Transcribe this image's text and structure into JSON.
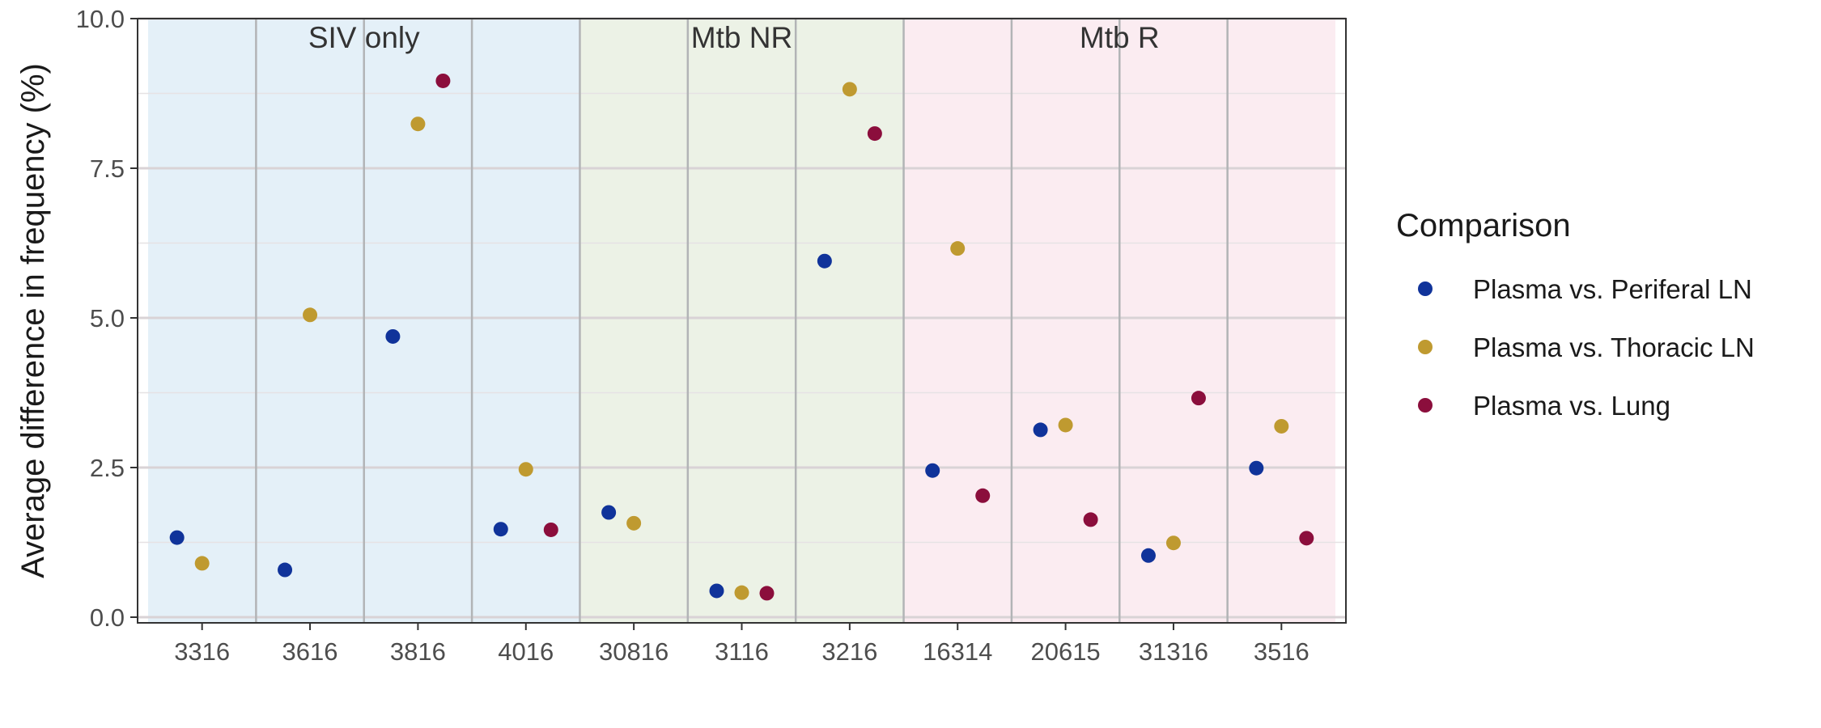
{
  "chart_data": {
    "type": "scatter",
    "ylabel": "Average difference in frequency (%)",
    "xlabel": "",
    "ylim": [
      0,
      10
    ],
    "yticks": [
      "0.0",
      "2.5",
      "5.0",
      "7.5",
      "10.0"
    ],
    "grid": true,
    "legend_title": "Comparison",
    "legend_position": "right",
    "categories": [
      "3316",
      "3616",
      "3816",
      "4016",
      "30816",
      "3116",
      "3216",
      "16314",
      "20615",
      "31316",
      "3516"
    ],
    "groups": [
      {
        "label": "SIV only",
        "categories": [
          "3316",
          "3616",
          "3816",
          "4016"
        ],
        "color": "#e4f0f8"
      },
      {
        "label": "Mtb NR",
        "categories": [
          "30816",
          "3116",
          "3216"
        ],
        "color": "#ecf2e6"
      },
      {
        "label": "Mtb R",
        "categories": [
          "16314",
          "20615",
          "31316",
          "3516"
        ],
        "color": "#fbecf1"
      }
    ],
    "series": [
      {
        "name": "Plasma vs. Periferal LN",
        "color": "#10339a",
        "values": [
          1.33,
          0.79,
          4.69,
          1.47,
          1.75,
          0.44,
          5.95,
          2.45,
          3.13,
          1.03,
          2.49
        ]
      },
      {
        "name": "Plasma vs. Thoracic LN",
        "color": "#bf9a30",
        "values": [
          0.9,
          5.05,
          8.24,
          2.47,
          1.57,
          0.41,
          8.82,
          6.16,
          3.21,
          1.24,
          3.19
        ]
      },
      {
        "name": "Plasma vs. Lung",
        "color": "#8b0e3c",
        "values": [
          null,
          null,
          8.96,
          1.46,
          null,
          0.4,
          8.08,
          2.03,
          1.63,
          3.66,
          1.32
        ]
      }
    ]
  }
}
